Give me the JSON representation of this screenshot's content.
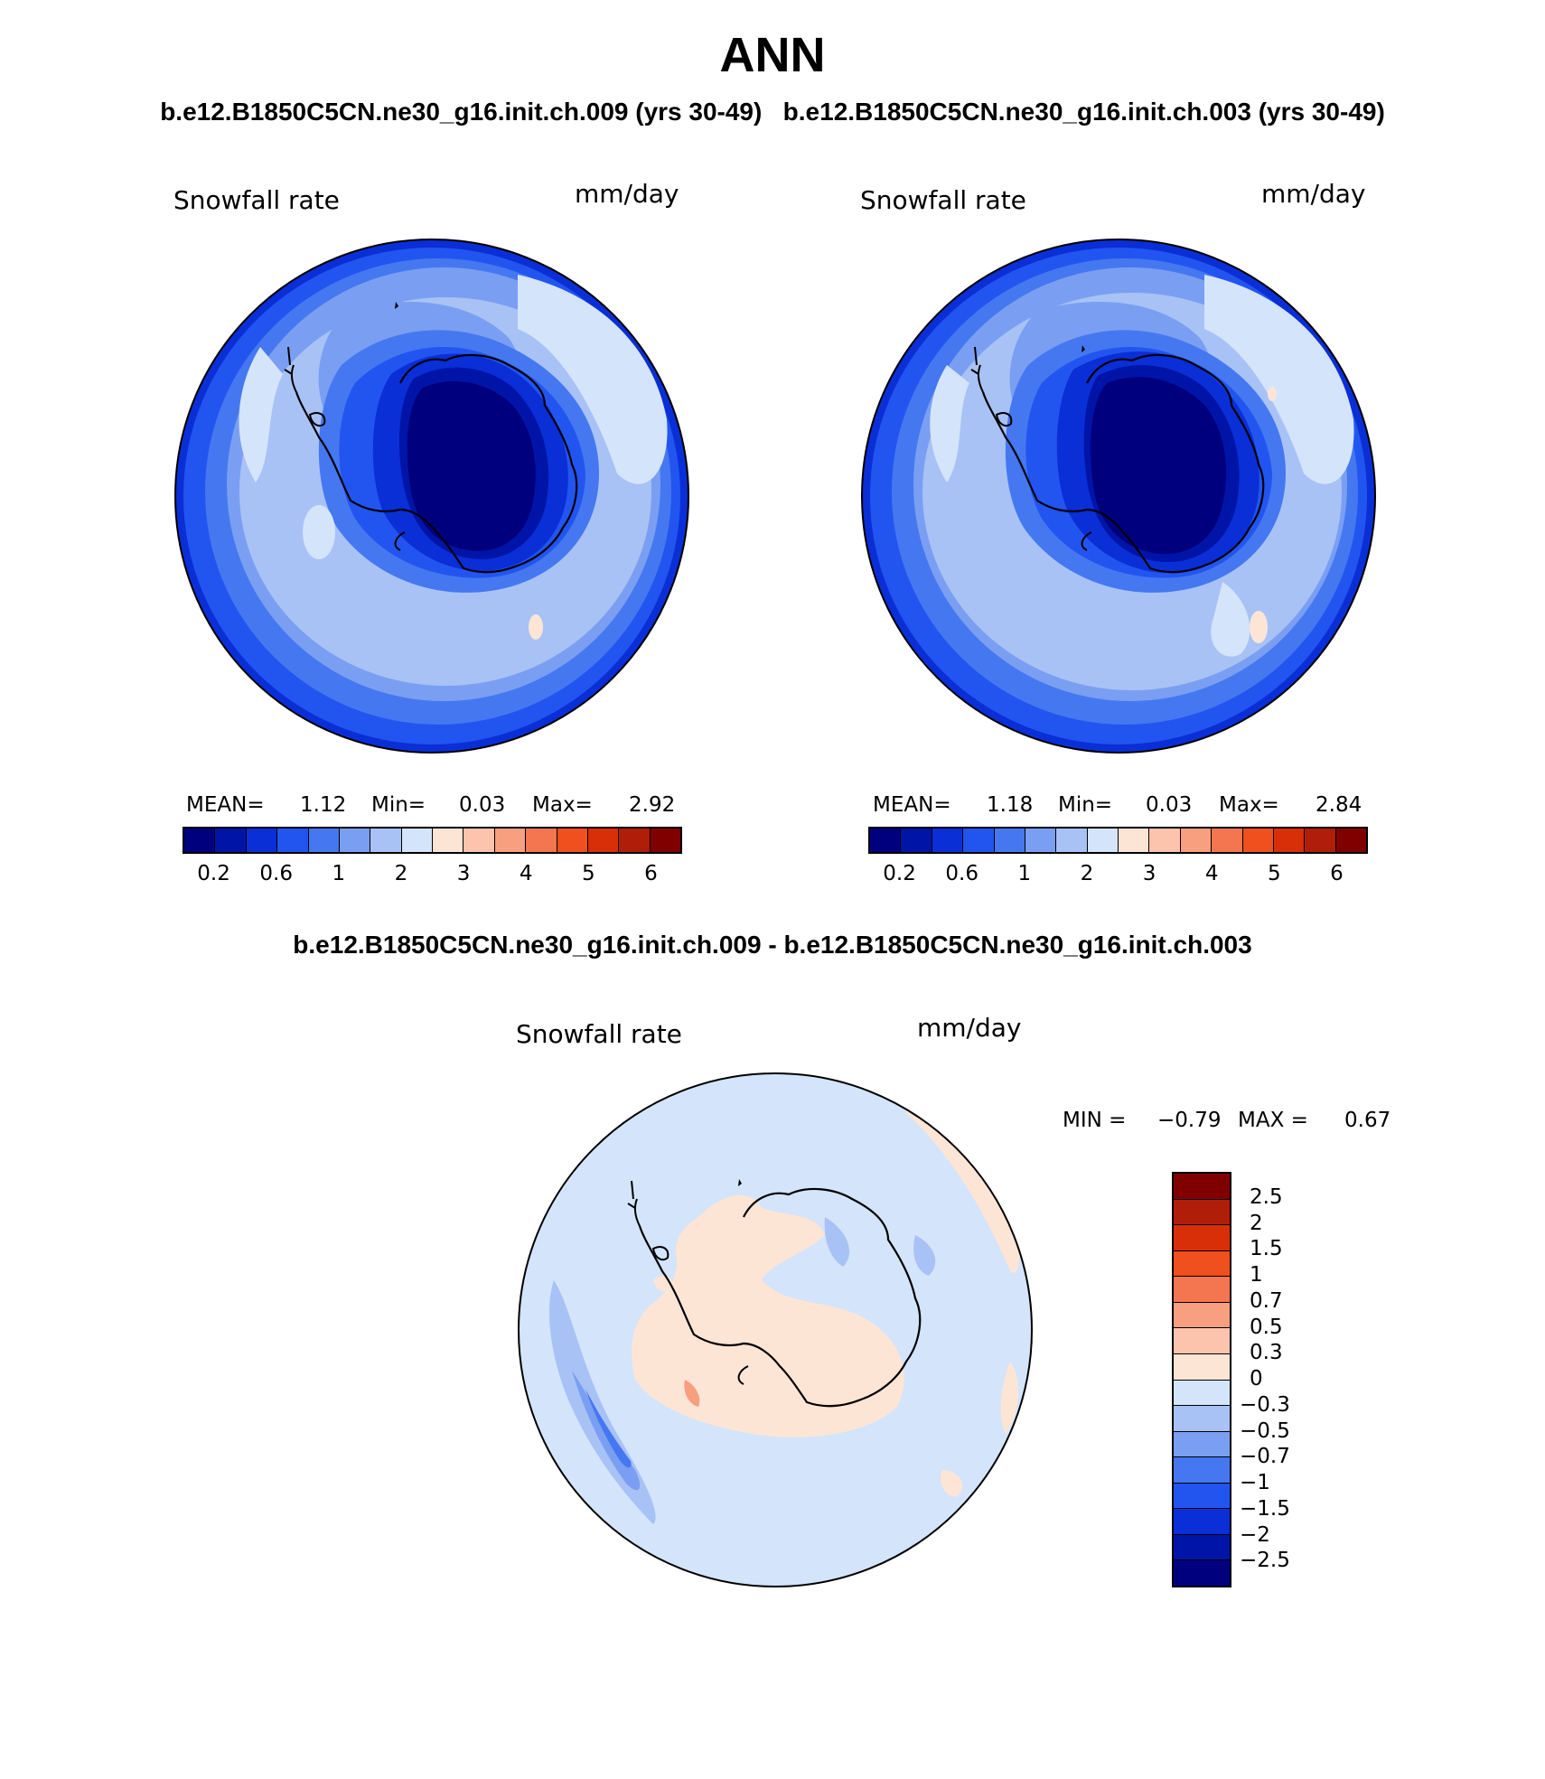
{
  "title": "ANN",
  "subtitle_left": "b.e12.B1850C5CN.ne30_g16.init.ch.009 (yrs 30-49)",
  "subtitle_right": "b.e12.B1850C5CN.ne30_g16.init.ch.003 (yrs 30-49)",
  "diff_title": "b.e12.B1850C5CN.ne30_g16.init.ch.009 - b.e12.B1850C5CN.ne30_g16.init.ch.003",
  "panels": {
    "left": {
      "variable": "Snowfall rate",
      "units": "mm/day",
      "mean_label": "MEAN=",
      "mean": "1.12",
      "min_label": "Min=",
      "min": "0.03",
      "max_label": "Max=",
      "max": "2.92"
    },
    "right": {
      "variable": "Snowfall rate",
      "units": "mm/day",
      "mean_label": "MEAN=",
      "mean": "1.18",
      "min_label": "Min=",
      "min": "0.03",
      "max_label": "Max=",
      "max": "2.84"
    },
    "diff": {
      "variable": "Snowfall rate",
      "units": "mm/day",
      "min_label": "MIN =",
      "min": "−0.79",
      "max_label": "MAX =",
      "max": "0.67"
    }
  },
  "colorbar": {
    "ticks": [
      "0.2",
      "0.6",
      "1",
      "2",
      "3",
      "4",
      "5",
      "6"
    ],
    "colors": [
      "#00007f",
      "#0015a8",
      "#0a2fd6",
      "#2255f0",
      "#4578f0",
      "#7a9ff2",
      "#a8c2f6",
      "#d4e4fa",
      "#fde5d6",
      "#fcc4ac",
      "#f89f80",
      "#f47650",
      "#f04f1e",
      "#d82f08",
      "#b01e0a",
      "#800000"
    ]
  },
  "diff_colorbar": {
    "ticks": [
      "2.5",
      "2",
      "1.5",
      "1",
      "0.7",
      "0.5",
      "0.3",
      "0",
      "−0.3",
      "−0.5",
      "−0.7",
      "−1",
      "−1.5",
      "−2",
      "−2.5"
    ],
    "colors": [
      "#800000",
      "#b01e0a",
      "#d82f08",
      "#f04f1e",
      "#f47650",
      "#f89f80",
      "#fcc4ac",
      "#fde5d6",
      "#d4e4fa",
      "#a8c2f6",
      "#7a9ff2",
      "#4578f0",
      "#2255f0",
      "#0a2fd6",
      "#0015a8",
      "#00007f"
    ]
  }
}
